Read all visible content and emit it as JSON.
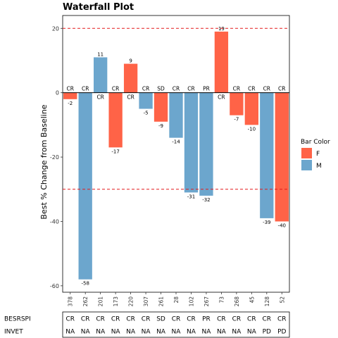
{
  "chart_data": {
    "type": "bar",
    "title": "Waterfall Plot",
    "ylabel": "Best % Change from Baseline",
    "xlabel": "",
    "ylim": [
      -62,
      24
    ],
    "yticks": [
      20,
      0,
      -20,
      -40,
      -60
    ],
    "reference_lines": [
      20,
      -30
    ],
    "categories": [
      "378",
      "262",
      "201",
      "173",
      "220",
      "307",
      "261",
      "28",
      "102",
      "267",
      "73",
      "268",
      "45",
      "128",
      "52"
    ],
    "values": [
      -2,
      -58,
      11,
      -17,
      9,
      -5,
      -9,
      -14,
      -31,
      -32,
      19,
      -7,
      -10,
      -39,
      -40
    ],
    "bar_color": [
      "F",
      "M",
      "M",
      "F",
      "F",
      "M",
      "F",
      "M",
      "M",
      "M",
      "F",
      "F",
      "F",
      "M",
      "F"
    ],
    "response": [
      "CR",
      "CR",
      "CR",
      "CR",
      "CR",
      "CR",
      "SD",
      "CR",
      "CR",
      "PR",
      "CR",
      "CR",
      "CR",
      "CR",
      "CR"
    ],
    "legend": {
      "title": "Bar Color",
      "position": "right",
      "items": [
        {
          "name": "F",
          "color": "#FF6347"
        },
        {
          "name": "M",
          "color": "#6CA6CD"
        }
      ]
    },
    "colors": {
      "F": "#FF6347",
      "M": "#6CA6CD",
      "reference": "#E41A1C"
    },
    "table": {
      "rows": [
        {
          "label": "BESRSPI",
          "values": [
            "CR",
            "CR",
            "CR",
            "CR",
            "CR",
            "CR",
            "SD",
            "CR",
            "CR",
            "PR",
            "CR",
            "CR",
            "CR",
            "CR",
            "CR"
          ]
        },
        {
          "label": "INVET",
          "values": [
            "NA",
            "NA",
            "NA",
            "NA",
            "NA",
            "NA",
            "NA",
            "NA",
            "NA",
            "NA",
            "NA",
            "NA",
            "NA",
            "PD",
            "PD"
          ]
        }
      ]
    }
  }
}
